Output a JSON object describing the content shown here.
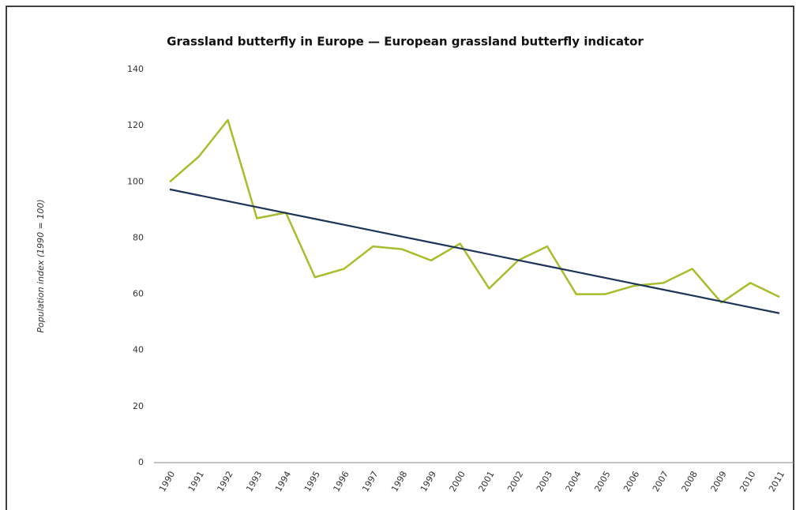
{
  "chart_data": {
    "type": "line",
    "title": "Grassland butterfly in Europe — European grassland butterfly indicator",
    "y_label": "Population index (1990 = 100)",
    "categories": [
      "1990",
      "1991",
      "1992",
      "1993",
      "1994",
      "1995",
      "1996",
      "1997",
      "1998",
      "1999",
      "2000",
      "2001",
      "2002",
      "2003",
      "2004",
      "2005",
      "2006",
      "2007",
      "2008",
      "2009",
      "2010",
      "2011"
    ],
    "series": [
      {
        "color": "#a8bc2c",
        "values": [
          100,
          109,
          122,
          87,
          89,
          66,
          69,
          77,
          76,
          72,
          78,
          62,
          72,
          77,
          60,
          60,
          63,
          64,
          69,
          57,
          64,
          59
        ]
      },
      {
        "color": "#1c3558",
        "values": [
          97.3,
          95.2,
          93.1,
          91.0,
          88.9,
          86.8,
          84.7,
          82.6,
          80.5,
          78.4,
          76.3,
          74.2,
          72.1,
          70.0,
          67.9,
          65.8,
          63.7,
          61.6,
          59.5,
          57.4,
          55.3,
          53.2
        ]
      }
    ],
    "ylim": [
      0,
      140
    ],
    "yticks": [
      0,
      20,
      40,
      60,
      80,
      100,
      120,
      140
    ],
    "grid": false
  }
}
